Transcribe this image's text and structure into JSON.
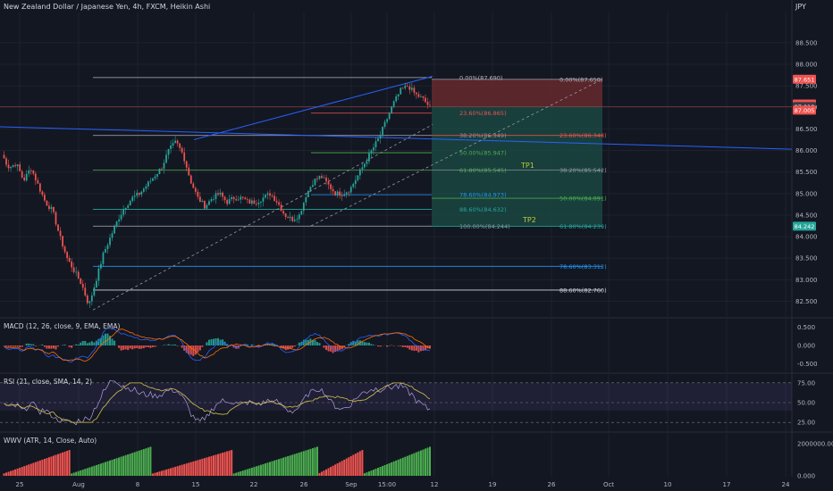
{
  "header": {
    "title": "New Zealand Dollar / Japanese Yen, 4h, FXCM, Heikin Ashi",
    "currency": "JPY"
  },
  "colors": {
    "background": "#131722",
    "bull": "#26a69a",
    "bear": "#ef5350",
    "grid": "#1e222d",
    "axis_text": "#b2b5be",
    "trendline": "#2962ff",
    "fib_line": "#b2b5be",
    "target_zone": "#1b4d45",
    "stop_zone": "#6b2a2e"
  },
  "chart_data": [
    {
      "type": "candlestick",
      "title": "New Zealand Dollar / Japanese Yen, 4h, FXCM, Heikin Ashi",
      "ylim": [
        82.2,
        89.2
      ],
      "y_ticks": [
        "88.500",
        "88.000",
        "87.500",
        "87.000",
        "86.500",
        "86.000",
        "85.500",
        "85.000",
        "84.500",
        "84.000",
        "83.500",
        "83.000",
        "82.500"
      ],
      "x_ticks": [
        "25",
        "Aug",
        "8",
        "15",
        "22",
        "26",
        "Sep",
        "15:00",
        "12",
        "19",
        "26",
        "Oct",
        "10",
        "17",
        "24"
      ],
      "price_badges": [
        {
          "label": "87.651",
          "color": "#ef5350"
        },
        {
          "label": "87.078",
          "color": "#ef5350"
        },
        {
          "label": "87.018",
          "color": "#363a45"
        },
        {
          "label": "87.005",
          "color": "#ef5350"
        },
        {
          "label": "84.242",
          "color": "#26a69a"
        }
      ],
      "close_path": [
        85.9,
        85.6,
        85.7,
        85.3,
        85.6,
        85.2,
        84.8,
        84.6,
        84.0,
        83.5,
        83.2,
        82.9,
        82.4,
        83.0,
        83.6,
        84.0,
        84.4,
        84.7,
        84.9,
        85.0,
        85.2,
        85.4,
        85.6,
        86.0,
        86.2,
        85.9,
        85.3,
        84.9,
        84.7,
        84.9,
        85.0,
        84.8,
        84.9,
        84.9,
        84.8,
        84.8,
        84.9,
        85.0,
        84.8,
        84.5,
        84.4,
        84.5,
        85.0,
        85.3,
        85.4,
        85.2,
        85.0,
        85.0,
        85.1,
        85.4,
        85.7,
        86.0,
        86.3,
        86.7,
        87.1,
        87.4,
        87.5,
        87.3,
        87.2,
        87.0
      ],
      "fib_left": [
        {
          "label": "0.00%(87.690)",
          "value": 87.69
        },
        {
          "label": "23.60%(86.865)",
          "value": 86.865
        },
        {
          "label": "38.20%(86.349)",
          "value": 86.349
        },
        {
          "label": "50.00%(85.947)",
          "value": 85.947
        },
        {
          "label": "61.80%(85.545)",
          "value": 85.545
        },
        {
          "label": "78.60%(84.973)",
          "value": 84.973
        },
        {
          "label": "88.60%(84.632)",
          "value": 84.632
        },
        {
          "label": "100.00%(84.244)",
          "value": 84.244
        }
      ],
      "fib_right": [
        {
          "label": "0.00%(87.650)",
          "value": 87.65
        },
        {
          "label": "23.60%(86.348)",
          "value": 86.348
        },
        {
          "label": "38.20%(85.542)",
          "value": 85.542
        },
        {
          "label": "50.00%(84.891)",
          "value": 84.891
        },
        {
          "label": "61.80%(84.239)",
          "value": 84.239
        },
        {
          "label": "78.60%(83.312)",
          "value": 83.312
        },
        {
          "label": "88.60%(82.760)",
          "value": 82.76
        }
      ],
      "annotations": [
        "TP1",
        "TP2"
      ],
      "target_zone": [
        84.242,
        87.018
      ],
      "stop_zone": [
        87.018,
        87.651
      ]
    },
    {
      "type": "histogram",
      "title": "MACD (12, 26, close, 9, EMA, EMA)",
      "y_ticks": [
        "0.500",
        "0.000",
        "-0.500"
      ],
      "ylim": [
        -0.7,
        0.7
      ]
    },
    {
      "type": "line",
      "title": "RSI (21, close, SMA, 14, 2)",
      "y_ticks": [
        "75.00",
        "50.00",
        "25.00"
      ],
      "ylim": [
        15,
        85
      ],
      "band": [
        40,
        75
      ]
    },
    {
      "type": "histogram",
      "title": "WWV (ATR, 14, Close, Auto)",
      "y_ticks": [
        "2000000.000",
        "0.000"
      ],
      "ylim": [
        0,
        2600000
      ]
    }
  ]
}
